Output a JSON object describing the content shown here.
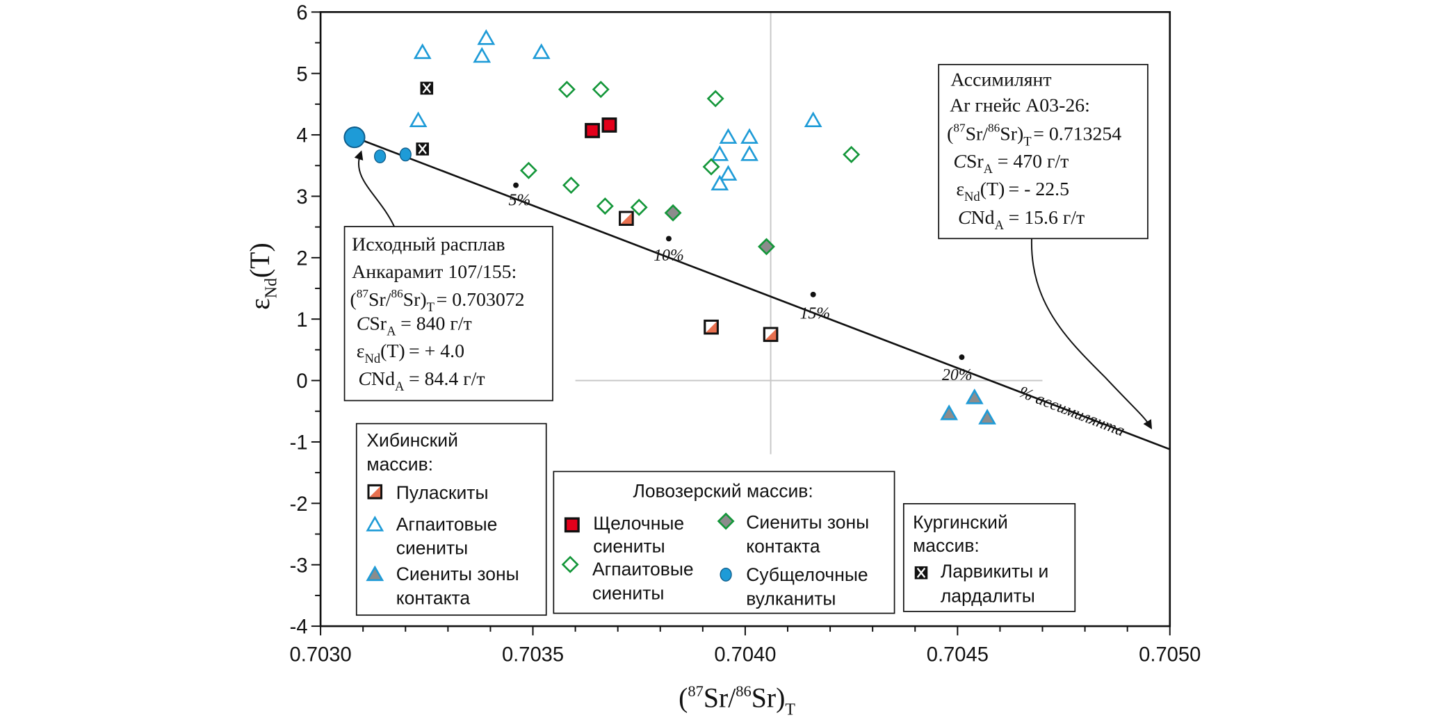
{
  "chart_data": {
    "type": "scatter",
    "xlabel": {
      "open": "(",
      "sup1": "87",
      "mid": "Sr/",
      "sup2": "86",
      "close": "Sr)",
      "sub": "T"
    },
    "ylabel": {
      "main": "ε",
      "sub": "Nd",
      "rest": "(T)"
    },
    "xlim": [
      0.703,
      0.705
    ],
    "ylim": [
      -4,
      6
    ],
    "x_ticks": [
      "0.7030",
      "0.7035",
      "0.7040",
      "0.7045",
      "0.7050"
    ],
    "y_ticks": [
      "6",
      "5",
      "4",
      "3",
      "2",
      "1",
      "0",
      "-1",
      "-2",
      "-3",
      "-4"
    ],
    "grid": false,
    "colors": {
      "blue": "#1E9BD7",
      "green": "#139639",
      "red": "#E3001B",
      "salmon": "#E8704F",
      "gray": "#8C8C8C"
    },
    "series": [
      {
        "name": "Пуласкиты",
        "group": "Хибинский массив",
        "marker": "pulaskite-square",
        "points": [
          [
            0.70372,
            2.64
          ],
          [
            0.70392,
            0.87
          ],
          [
            0.70406,
            0.75
          ]
        ]
      },
      {
        "name": "Агпаитовые сиениты",
        "group": "Хибинский массив",
        "marker": "open-triangle",
        "points": [
          [
            0.70324,
            5.34
          ],
          [
            0.70339,
            5.57
          ],
          [
            0.70338,
            5.28
          ],
          [
            0.70352,
            5.34
          ],
          [
            0.70323,
            4.23
          ],
          [
            0.70394,
            3.68
          ],
          [
            0.70396,
            3.96
          ],
          [
            0.70401,
            3.96
          ],
          [
            0.70401,
            3.68
          ],
          [
            0.70396,
            3.36
          ],
          [
            0.70394,
            3.2
          ],
          [
            0.70416,
            4.23
          ]
        ]
      },
      {
        "name": "Сиениты зоны контакта",
        "group": "Хибинский массив",
        "marker": "gray-triangle",
        "points": [
          [
            0.70448,
            -0.54
          ],
          [
            0.70454,
            -0.28
          ],
          [
            0.70457,
            -0.61
          ]
        ]
      },
      {
        "name": "Щелочные сиениты",
        "group": "Ловозерский массив",
        "marker": "red-square",
        "points": [
          [
            0.70364,
            4.07
          ],
          [
            0.70368,
            4.16
          ]
        ]
      },
      {
        "name": "Агпаитовые сиениты",
        "group": "Ловозерский массив",
        "marker": "open-diamond",
        "points": [
          [
            0.70358,
            4.74
          ],
          [
            0.70366,
            4.74
          ],
          [
            0.70393,
            4.59
          ],
          [
            0.70349,
            3.42
          ],
          [
            0.70359,
            3.18
          ],
          [
            0.70367,
            2.84
          ],
          [
            0.70375,
            2.82
          ],
          [
            0.70392,
            3.48
          ],
          [
            0.70425,
            3.68
          ]
        ]
      },
      {
        "name": "Сиениты зоны контакта",
        "group": "Ловозерский массив",
        "marker": "gray-diamond",
        "points": [
          [
            0.70383,
            2.73
          ],
          [
            0.70405,
            2.18
          ]
        ]
      },
      {
        "name": "Субщелочные вулканиты",
        "group": "Ловозерский массив",
        "marker": "blue-circle",
        "points": [
          [
            0.70314,
            3.65
          ],
          [
            0.7032,
            3.68
          ]
        ]
      },
      {
        "name": "Ларвикиты и лардалиты",
        "group": "Кургинский массив",
        "marker": "x-square",
        "points": [
          [
            0.70325,
            4.76
          ],
          [
            0.70324,
            3.77
          ]
        ]
      }
    ],
    "initial_melt_point": [
      0.70308,
      3.96
    ],
    "mixing_line": {
      "points": [
        [
          0.70308,
          3.96
        ],
        [
          0.705,
          -1.12
        ]
      ],
      "marks": [
        {
          "x": 0.70346,
          "y": 3.18,
          "label": "5%"
        },
        {
          "x": 0.70382,
          "y": 2.31,
          "label": "10%"
        },
        {
          "x": 0.70416,
          "y": 1.4,
          "label": "15%"
        },
        {
          "x": 0.70451,
          "y": 0.38,
          "label": "20%"
        }
      ],
      "label": "% ассимилянта"
    },
    "reference_lines": {
      "vertical_x": 0.70406,
      "vertical_y_range": [
        -1.2,
        6
      ],
      "horizontal_y": 0,
      "horizontal_x_range": [
        0.7036,
        0.7047
      ]
    }
  },
  "annotations": {
    "initial_melt": {
      "line1": "Исходный расплав",
      "line2": "Анкарамит 107/155:",
      "sr_value": "= 0.703072",
      "csr": "= 840 г/т",
      "end": "= + 4.0",
      "cnd": "= 84.4 г/т"
    },
    "assimilant": {
      "line1": "Ассимилянт",
      "line2": "Ar гнейс А03-26:",
      "sr_value": "= 0.713254",
      "csr": "= 470 г/т",
      "end": "= - 22.5",
      "cnd": "= 15.6 г/т"
    },
    "common": {
      "open": "(",
      "sup1": "87",
      "sr": "Sr/",
      "sup2": "86",
      "sr2": "Sr)",
      "T": "T",
      "C": "C",
      "Sr": "Sr",
      "A": "A",
      "eps": "ε",
      "Nd": "Nd",
      "Tp": "(T)"
    }
  },
  "legends": {
    "khibiny": {
      "title1": "Хибинский",
      "title2": "массив:",
      "items": [
        "Пуласкиты",
        "Агпаитовые",
        "сиениты",
        "Сиениты зоны",
        "контакта"
      ]
    },
    "lovozero": {
      "title": "Ловозерский массив:",
      "items": [
        "Щелочные",
        "сиениты",
        "Агпаитовые",
        "сиениты",
        "Сиениты зоны",
        "контакта",
        "Субщелочные",
        "вулканиты"
      ]
    },
    "kurga": {
      "title1": "Кургинский",
      "title2": "массив:",
      "items": [
        "Ларвикиты и",
        "лардалиты"
      ]
    }
  }
}
